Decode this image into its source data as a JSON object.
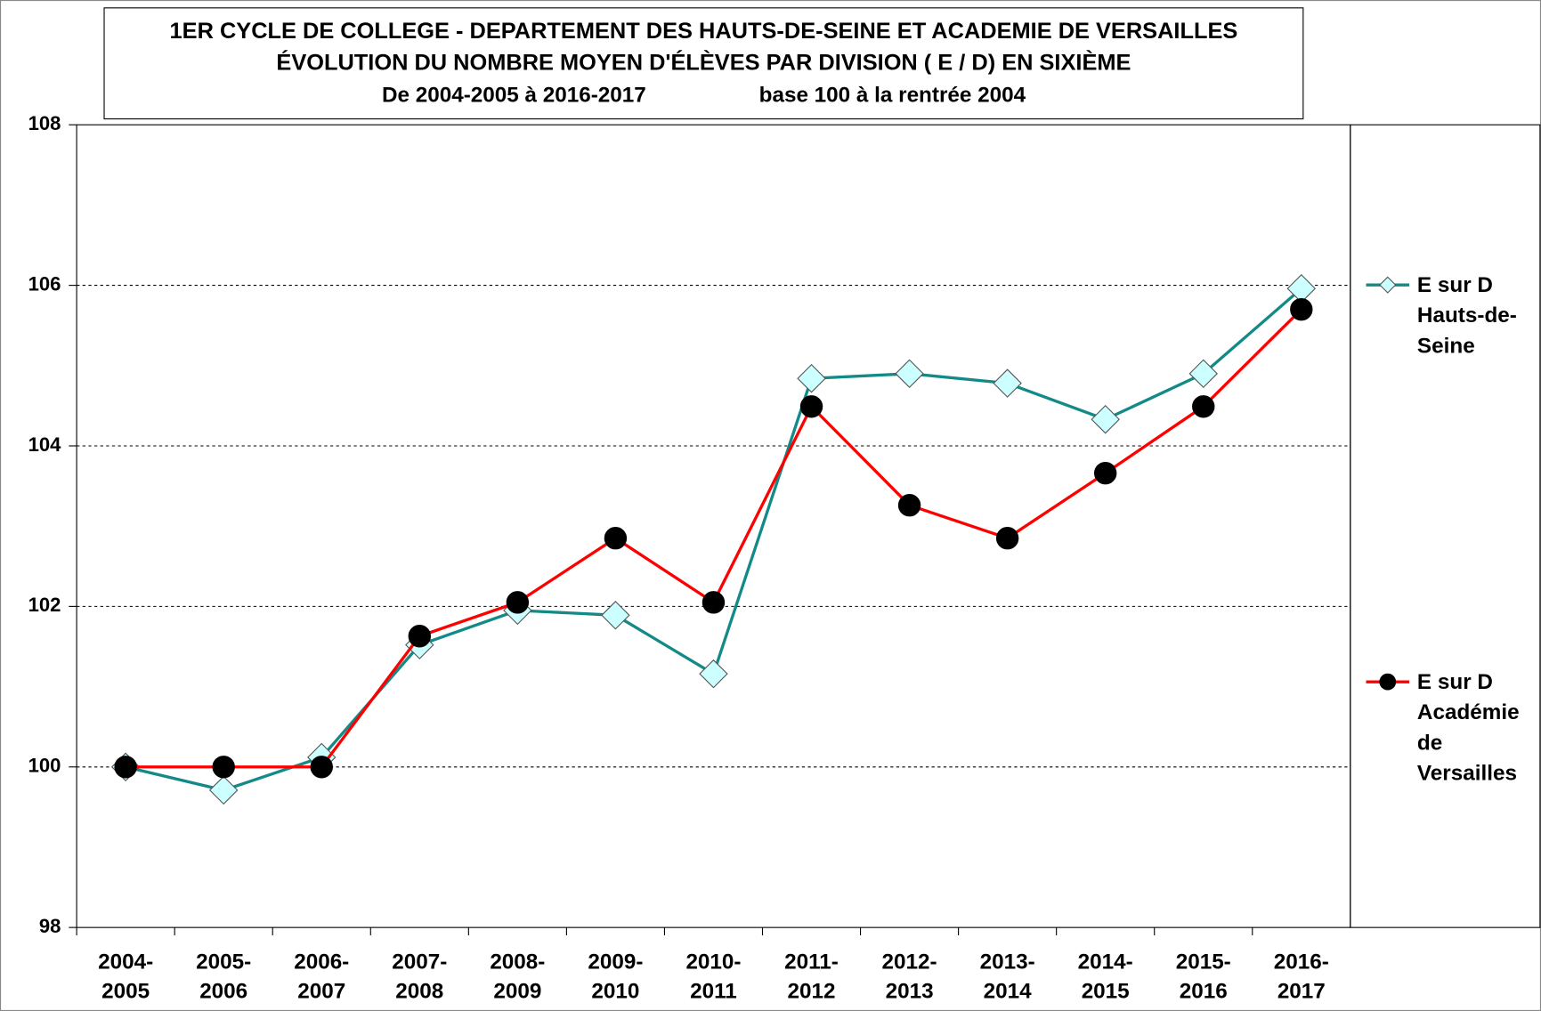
{
  "chart_data": {
    "type": "line",
    "title": [
      "1ER CYCLE DE COLLEGE - DEPARTEMENT DES HAUTS-DE-SEINE ET ACADEMIE DE VERSAILLES",
      "ÉVOLUTION DU NOMBRE MOYEN D'ÉLÈVES PAR DIVISION ( E / D) EN SIXIÈME"
    ],
    "subtitle": "De 2004-2005 à 2016-2017",
    "note": "base 100 à la rentrée 2004",
    "categories": [
      [
        "2004-",
        "2005"
      ],
      [
        "2005-",
        "2006"
      ],
      [
        "2006-",
        "2007"
      ],
      [
        "2007-",
        "2008"
      ],
      [
        "2008-",
        "2009"
      ],
      [
        "2009-",
        "2010"
      ],
      [
        "2010-",
        "2011"
      ],
      [
        "2011-",
        "2012"
      ],
      [
        "2012-",
        "2013"
      ],
      [
        "2013-",
        "2014"
      ],
      [
        "2014-",
        "2015"
      ],
      [
        "2015-",
        "2016"
      ],
      [
        "2016-",
        "2017"
      ]
    ],
    "series": [
      {
        "name": "E sur D Hauts-de-Seine",
        "color": "#138a87",
        "marker": "diamond",
        "marker_color": "#ccffff",
        "values": [
          100,
          99.71,
          100.12,
          101.52,
          101.95,
          101.89,
          101.16,
          104.84,
          104.9,
          104.78,
          104.33,
          104.9,
          105.96
        ]
      },
      {
        "name": "E sur D Académie de Versailles",
        "color": "#ff0000",
        "marker": "circle",
        "marker_color": "#000000",
        "values": [
          100,
          100,
          100,
          101.63,
          102.05,
          102.85,
          102.05,
          104.49,
          103.26,
          102.85,
          103.66,
          104.49,
          105.7
        ]
      }
    ],
    "ylim": [
      98,
      108
    ],
    "yticks": [
      98,
      100,
      102,
      104,
      106,
      108
    ],
    "grid": true,
    "legend": "right"
  }
}
